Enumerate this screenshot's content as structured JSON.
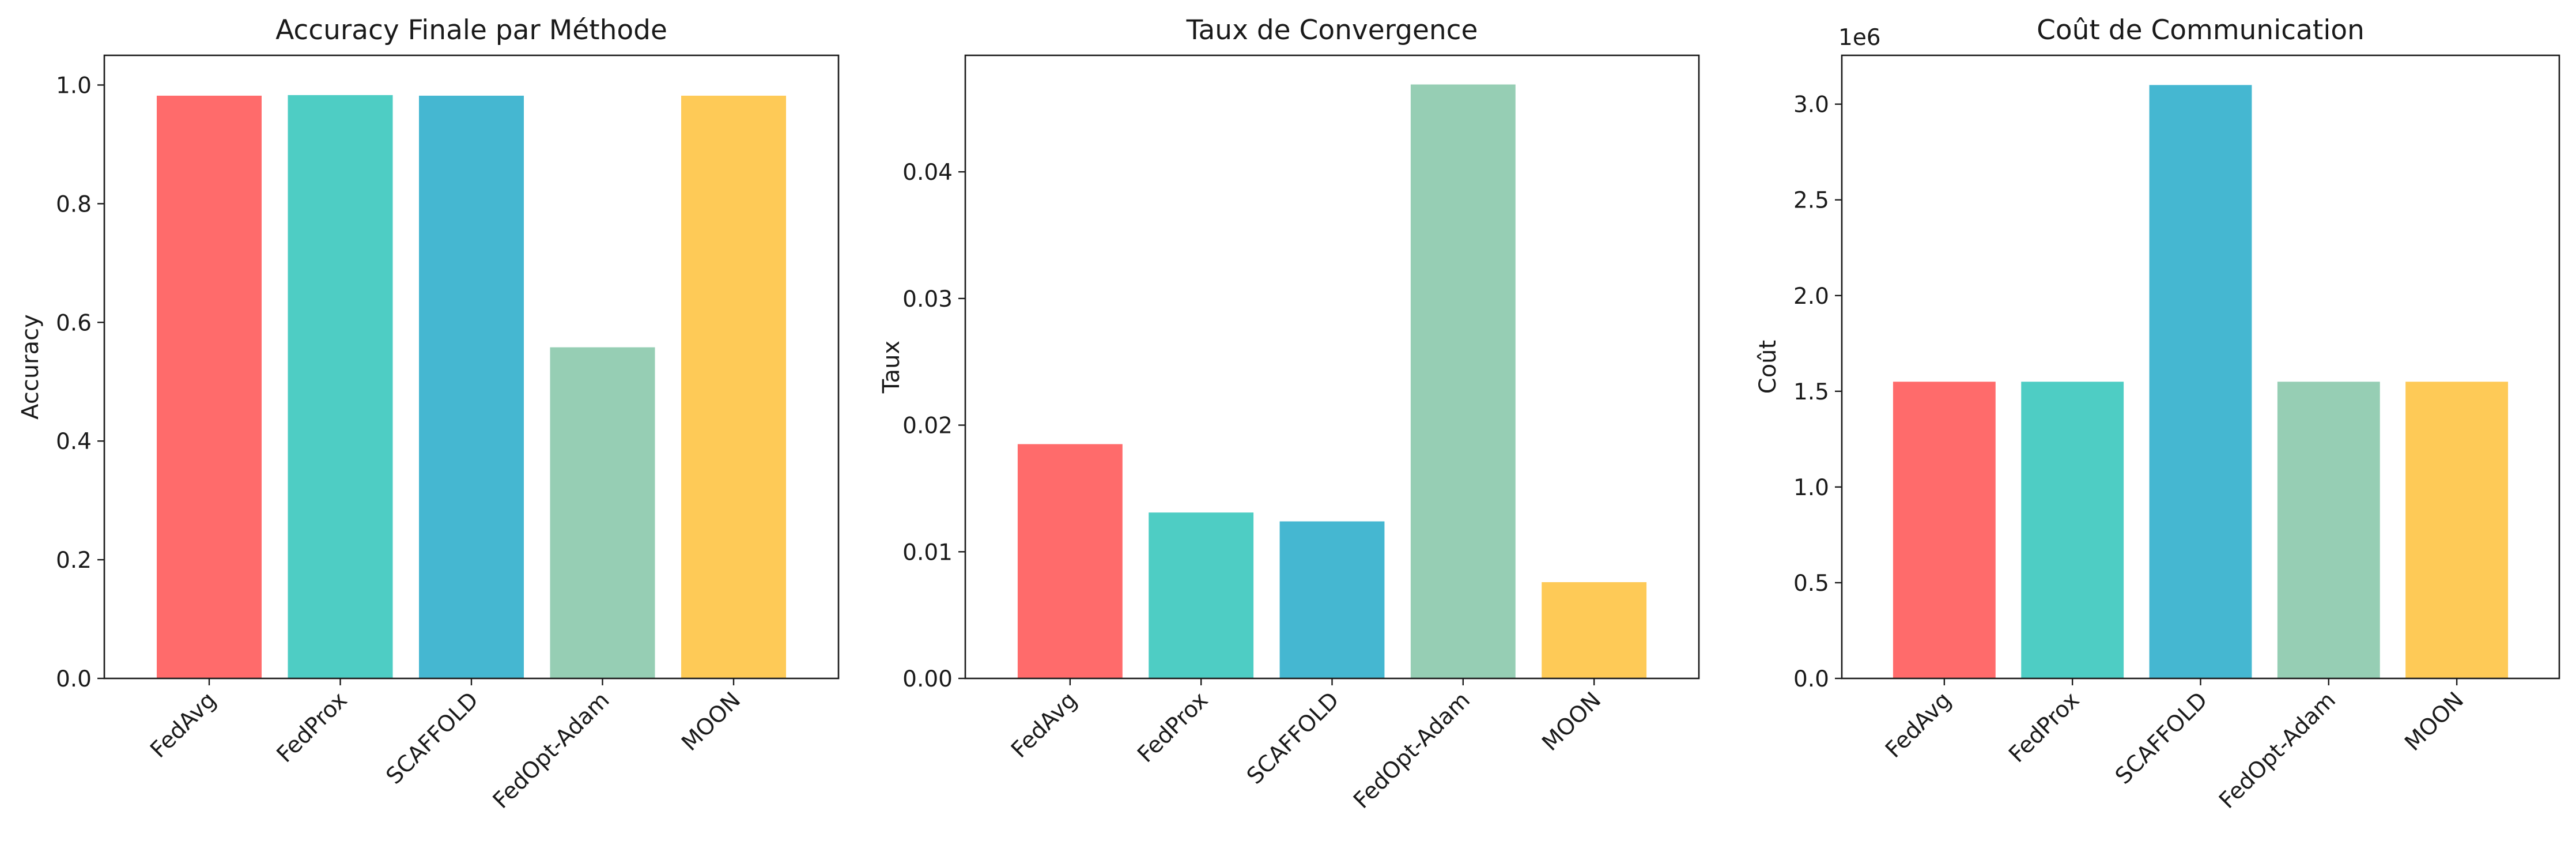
{
  "chart_data": [
    {
      "type": "bar",
      "title": "Accuracy Finale par Méthode",
      "xlabel": "",
      "ylabel": "Accuracy",
      "categories": [
        "FedAvg",
        "FedProx",
        "SCAFFOLD",
        "FedOpt-Adam",
        "MOON"
      ],
      "values": [
        0.982,
        0.983,
        0.982,
        0.558,
        0.982
      ],
      "ylim": [
        0,
        1.05
      ],
      "yticks": [
        0.0,
        0.2,
        0.4,
        0.6,
        0.8,
        1.0
      ],
      "ytick_labels": [
        "0.0",
        "0.2",
        "0.4",
        "0.6",
        "0.8",
        "1.0"
      ],
      "offset_text": "",
      "grid": false,
      "colors": [
        "#FF6B6B",
        "#4ECDC4",
        "#45B7D1",
        "#96CEB4",
        "#FECA57"
      ]
    },
    {
      "type": "bar",
      "title": "Taux de Convergence",
      "xlabel": "",
      "ylabel": "Taux",
      "categories": [
        "FedAvg",
        "FedProx",
        "SCAFFOLD",
        "FedOpt-Adam",
        "MOON"
      ],
      "values": [
        0.0185,
        0.0131,
        0.0124,
        0.0469,
        0.0076
      ],
      "ylim": [
        0,
        0.0492
      ],
      "yticks": [
        0.0,
        0.01,
        0.02,
        0.03,
        0.04
      ],
      "ytick_labels": [
        "0.00",
        "0.01",
        "0.02",
        "0.03",
        "0.04"
      ],
      "offset_text": "",
      "grid": false,
      "colors": [
        "#FF6B6B",
        "#4ECDC4",
        "#45B7D1",
        "#96CEB4",
        "#FECA57"
      ]
    },
    {
      "type": "bar",
      "title": "Coût de Communication",
      "xlabel": "",
      "ylabel": "Coût",
      "categories": [
        "FedAvg",
        "FedProx",
        "SCAFFOLD",
        "FedOpt-Adam",
        "MOON"
      ],
      "values": [
        1550000,
        1550000,
        3100000,
        1550000,
        1550000
      ],
      "ylim": [
        0,
        3255000
      ],
      "yticks": [
        0,
        500000,
        1000000,
        1500000,
        2000000,
        2500000,
        3000000
      ],
      "ytick_labels": [
        "0.0",
        "0.5",
        "1.0",
        "1.5",
        "2.0",
        "2.5",
        "3.0"
      ],
      "offset_text": "1e6",
      "grid": false,
      "colors": [
        "#FF6B6B",
        "#4ECDC4",
        "#45B7D1",
        "#96CEB4",
        "#FECA57"
      ]
    }
  ]
}
